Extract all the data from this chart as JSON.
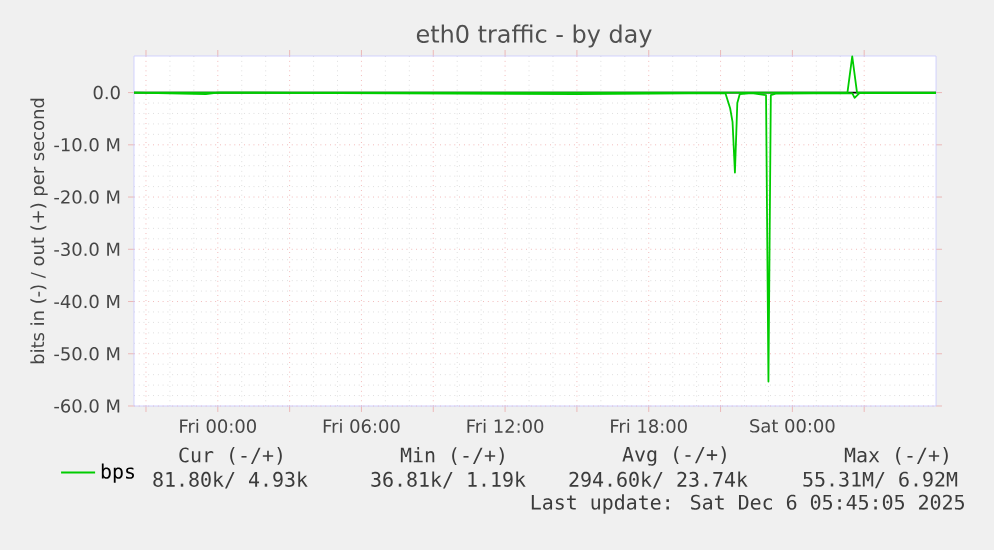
{
  "chart_data": {
    "type": "line",
    "title": "eth0 traffic - by day",
    "ylabel": "bits in (-) / out (+) per second",
    "xlim": [
      "2025-12-04T20:30",
      "2025-12-06T06:00"
    ],
    "ylim": [
      -60,
      7
    ],
    "xticks": [
      {
        "value": "2025-12-04T21:00",
        "label": null
      },
      {
        "value": "2025-12-05T00:00",
        "label": "Fri 00:00"
      },
      {
        "value": "2025-12-05T03:00",
        "label": null
      },
      {
        "value": "2025-12-05T06:00",
        "label": "Fri 06:00"
      },
      {
        "value": "2025-12-05T09:00",
        "label": null
      },
      {
        "value": "2025-12-05T12:00",
        "label": "Fri 12:00"
      },
      {
        "value": "2025-12-05T15:00",
        "label": null
      },
      {
        "value": "2025-12-05T18:00",
        "label": "Fri 18:00"
      },
      {
        "value": "2025-12-05T21:00",
        "label": null
      },
      {
        "value": "2025-12-06T00:00",
        "label": "Sat 00:00"
      },
      {
        "value": "2025-12-06T03:00",
        "label": null
      }
    ],
    "yticks": [
      {
        "value": -60,
        "label": "-60.0 M"
      },
      {
        "value": -50,
        "label": "-50.0 M"
      },
      {
        "value": -40,
        "label": "-40.0 M"
      },
      {
        "value": -30,
        "label": "-30.0 M"
      },
      {
        "value": -20,
        "label": "-20.0 M"
      },
      {
        "value": -10,
        "label": "-10.0 M"
      },
      {
        "value": 0,
        "label": "0.0"
      }
    ],
    "grid": true,
    "legend": "bottom left",
    "marker": "none",
    "line_style": "solid",
    "ref_lines": [
      {
        "axis": "y",
        "value": 0,
        "color": "#000000"
      }
    ],
    "series": [
      {
        "name": "bps",
        "color": "#00cc00",
        "x": [
          "2025-12-04T20:30",
          "2025-12-04T23:30",
          "2025-12-05T00:00",
          "2025-12-05T05:00",
          "2025-12-05T10:00",
          "2025-12-05T15:00",
          "2025-12-05T21:12",
          "2025-12-05T21:24",
          "2025-12-05T21:30",
          "2025-12-05T21:36",
          "2025-12-05T21:42",
          "2025-12-05T21:48",
          "2025-12-05T22:18",
          "2025-12-05T22:54",
          "2025-12-05T23:00",
          "2025-12-05T23:06",
          "2025-12-05T23:18",
          "2025-12-06T02:30",
          "2025-12-06T02:36",
          "2025-12-06T02:48",
          "2025-12-06T06:00"
        ],
        "values": [
          0,
          -0.3,
          0,
          -0.1,
          -0.2,
          -0.3,
          -0.1,
          -3,
          -5.6,
          -15.3,
          -2,
          -0.3,
          -0.1,
          -0.5,
          -55.31,
          -0.5,
          -0.2,
          -0.1,
          -1.0,
          -0.1,
          -0.1
        ]
      },
      {
        "color": "#00cc00",
        "x": [
          "2025-12-04T20:30",
          "2025-12-06T02:18",
          "2025-12-06T02:30",
          "2025-12-06T02:42",
          "2025-12-06T06:00"
        ],
        "values": [
          0,
          0,
          6.92,
          0,
          0
        ]
      }
    ],
    "annotations": [
      "Cur (-/+)",
      "Min (-/+)",
      "Avg (-/+)",
      "Max (-/+)",
      "81.80k/   4.93k",
      "36.81k/   1.19k",
      "294.60k/ 23.74k",
      "55.31M/  6.92M",
      "Last update: Sat Dec  6 05:45:05 2025"
    ]
  }
}
